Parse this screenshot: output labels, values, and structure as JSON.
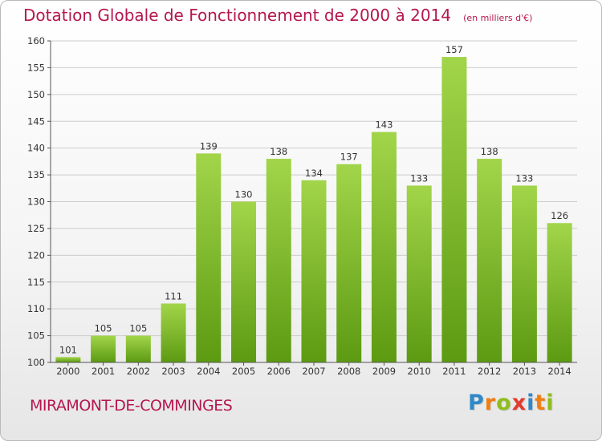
{
  "header": {
    "title": "Dotation Globale de Fonctionnement de 2000 à 2014",
    "unit": "(en milliers d'€)"
  },
  "footer": {
    "commune": "MIRAMONT-DE-COMMINGES",
    "logo": "Proxiti"
  },
  "colors": {
    "title": "#b5174f",
    "bar_top": "#a2d54a",
    "bar_bottom": "#5c9a12",
    "grid": "#cccccc",
    "axis_text": "#333333"
  },
  "chart_data": {
    "type": "bar",
    "title": "Dotation Globale de Fonctionnement de 2000 à 2014",
    "subtitle": "(en milliers d'€)",
    "xlabel": "",
    "ylabel": "",
    "categories": [
      "2000",
      "2001",
      "2002",
      "2003",
      "2004",
      "2005",
      "2006",
      "2007",
      "2008",
      "2009",
      "2010",
      "2011",
      "2012",
      "2013",
      "2014"
    ],
    "values": [
      101,
      105,
      105,
      111,
      139,
      130,
      138,
      134,
      137,
      143,
      133,
      157,
      138,
      133,
      126
    ],
    "ylim": [
      100,
      160
    ],
    "yticks": [
      100,
      105,
      110,
      115,
      120,
      125,
      130,
      135,
      140,
      145,
      150,
      155,
      160
    ],
    "grid": true,
    "legend": "none"
  }
}
